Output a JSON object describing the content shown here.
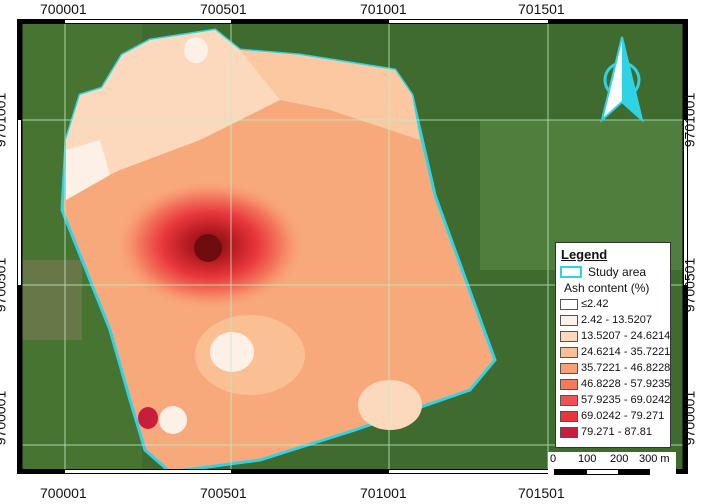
{
  "map": {
    "x_ticks": [
      "700001",
      "700501",
      "701001",
      "701501"
    ],
    "y_ticks": [
      "9701001",
      "9700501",
      "9700001"
    ],
    "north_arrow": "north-arrow-icon"
  },
  "legend": {
    "title": "Legend",
    "study_area": "Study area",
    "study_area_color": "#2fd3e6",
    "variable": "Ash content (%)",
    "classes": [
      {
        "label": "≤2.42",
        "color": "#ffffff"
      },
      {
        "label": "2.42 - 13.5207",
        "color": "#fdf0e6"
      },
      {
        "label": "13.5207 - 24.6214",
        "color": "#fcd9bd"
      },
      {
        "label": "24.6214 - 35.7221",
        "color": "#fbbf94"
      },
      {
        "label": "35.7221 - 46.8228",
        "color": "#f99f74"
      },
      {
        "label": "46.8228 - 57.9235",
        "color": "#f47a5e"
      },
      {
        "label": "57.9235 - 69.0242",
        "color": "#ee5252"
      },
      {
        "label": "69.0242 - 79.271",
        "color": "#e8373c"
      },
      {
        "label": "79.271 - 87.81",
        "color": "#c81d3c"
      }
    ]
  },
  "scale_bar": {
    "labels": [
      "0",
      "100",
      "200",
      "300 m"
    ]
  }
}
